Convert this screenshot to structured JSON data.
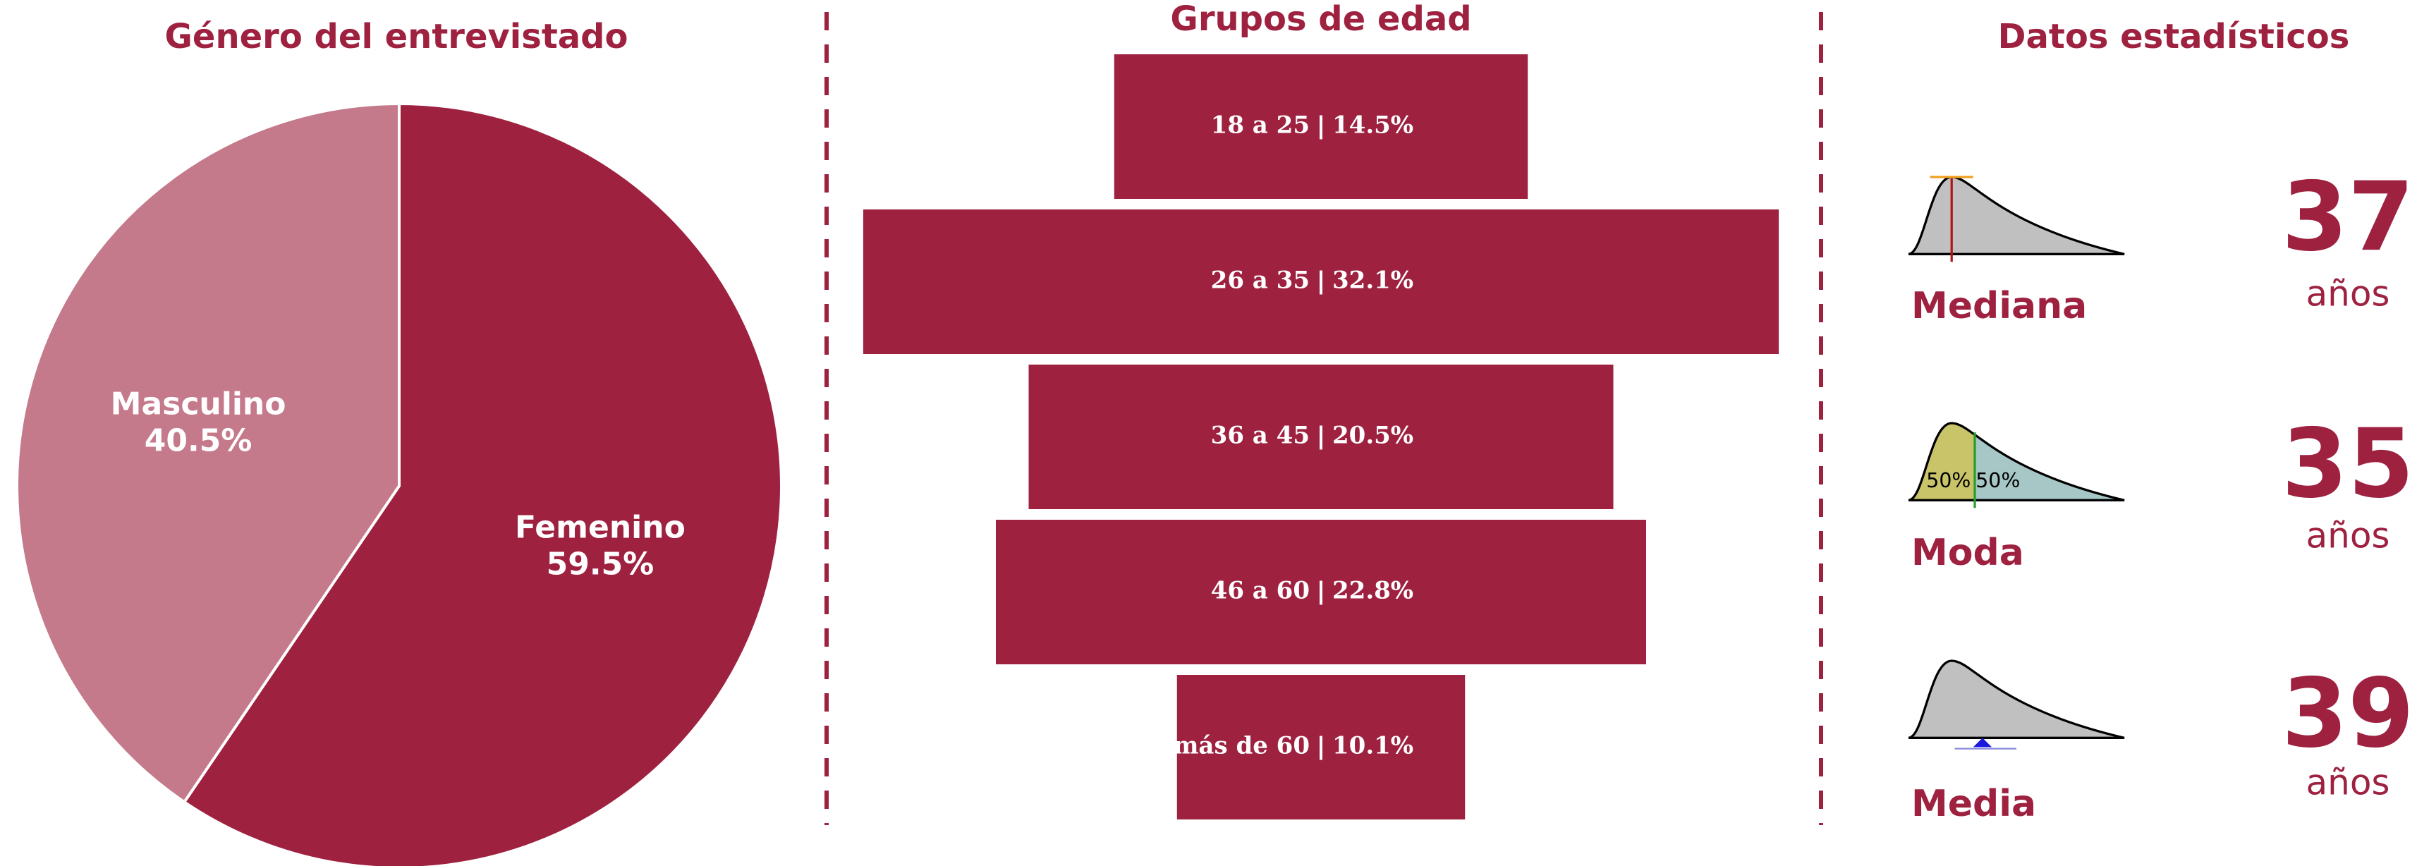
{
  "chart_data": [
    {
      "type": "pie",
      "title": "Género del entrevistado",
      "categories": [
        "Femenino",
        "Masculino"
      ],
      "values": [
        59.5,
        40.5
      ],
      "value_labels": [
        "59.5%",
        "40.5%"
      ],
      "colors": [
        "#9e2140",
        "#c47a8a"
      ]
    },
    {
      "type": "funnel",
      "title": "Grupos de edad",
      "categories": [
        "18 a 25",
        "26 a 35",
        "36 a 45",
        "46 a 60",
        "más de 60"
      ],
      "values": [
        14.5,
        32.1,
        20.5,
        22.8,
        10.1
      ],
      "value_labels": [
        "14.5%",
        "32.1%",
        "20.5%",
        "22.8%",
        "10.1%"
      ],
      "color": "#9e2140"
    }
  ],
  "stats": {
    "title": "Datos estadísticos",
    "items": [
      {
        "label": "Mediana",
        "value": 37,
        "unit": "años"
      },
      {
        "label": "Moda",
        "value": 35,
        "unit": "años",
        "icon_labels": [
          "50%",
          "50%"
        ]
      },
      {
        "label": "Media",
        "value": 39,
        "unit": "años"
      }
    ]
  }
}
